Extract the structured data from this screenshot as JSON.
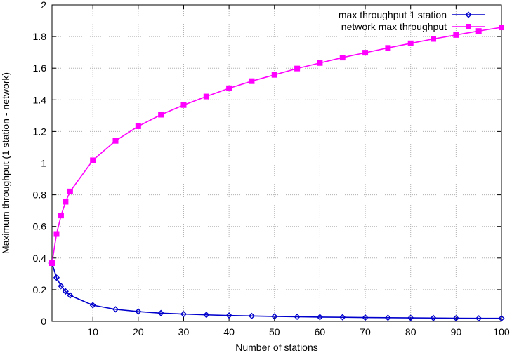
{
  "chart_data": {
    "type": "line",
    "title": "",
    "xlabel": "Number of stations",
    "ylabel": "Maximum throughput (1 station - network)",
    "xlim": [
      1,
      100
    ],
    "ylim": [
      0,
      2
    ],
    "grid": true,
    "legend_position": "top-right",
    "x_ticks": [
      10,
      20,
      30,
      40,
      50,
      60,
      70,
      80,
      90,
      100
    ],
    "x_tick_labels": [
      "10",
      "20",
      "30",
      "40",
      "50",
      "60",
      "70",
      "80",
      "90",
      "100"
    ],
    "y_ticks": [
      0,
      0.2,
      0.4,
      0.6,
      0.8,
      1,
      1.2,
      1.4,
      1.6,
      1.8,
      2
    ],
    "y_tick_labels": [
      "0",
      "0.2",
      "0.4",
      "0.6",
      "0.8",
      "1",
      "1.2",
      "1.4",
      "1.6",
      "1.8",
      "2"
    ],
    "x": [
      1,
      2,
      3,
      4,
      5,
      10,
      15,
      20,
      25,
      30,
      35,
      40,
      45,
      50,
      55,
      60,
      65,
      70,
      75,
      80,
      85,
      90,
      95,
      100
    ],
    "series": [
      {
        "name": "max throughput 1 station",
        "color": "#0000cc",
        "marker": "diamond",
        "values": [
          0.368,
          0.276,
          0.223,
          0.189,
          0.164,
          0.102,
          0.076,
          0.062,
          0.052,
          0.046,
          0.041,
          0.037,
          0.034,
          0.031,
          0.029,
          0.027,
          0.026,
          0.024,
          0.023,
          0.022,
          0.021,
          0.02,
          0.019,
          0.019
        ]
      },
      {
        "name": "network max throughput",
        "color": "#ff00ff",
        "marker": "square",
        "values": [
          0.368,
          0.552,
          0.669,
          0.756,
          0.821,
          1.018,
          1.141,
          1.233,
          1.306,
          1.367,
          1.421,
          1.473,
          1.518,
          1.558,
          1.598,
          1.633,
          1.667,
          1.698,
          1.728,
          1.757,
          1.785,
          1.81,
          1.835,
          1.858
        ]
      }
    ]
  }
}
